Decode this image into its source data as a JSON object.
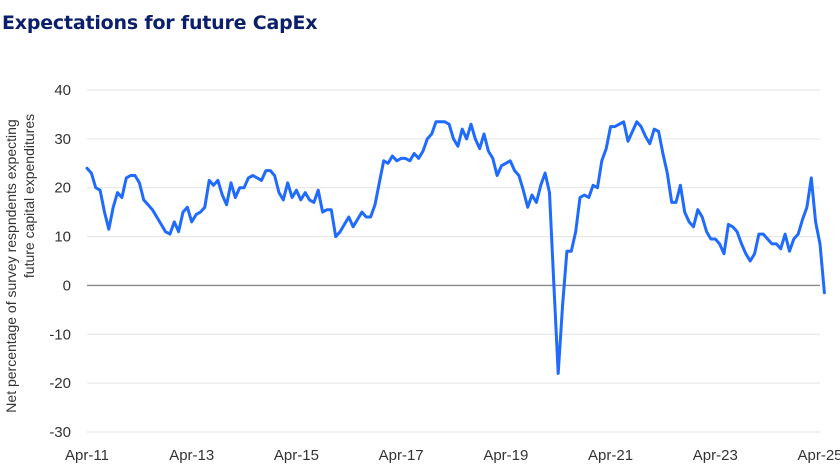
{
  "chart_data": {
    "type": "line",
    "title": "Expectations for future CapEx",
    "ylabel": "Net percentage of survey respndents expecting future capital expenditures",
    "xlabel": "",
    "ylim": [
      -30,
      40
    ],
    "yticks": [
      40,
      30,
      20,
      10,
      0,
      -10,
      -20,
      -30
    ],
    "xtick_labels": [
      "Apr-11",
      "Apr-13",
      "Apr-15",
      "Apr-17",
      "Apr-19",
      "Apr-21",
      "Apr-23",
      "Apr-25"
    ],
    "grid": true,
    "zero_line": true,
    "color": "#1f6bff",
    "series": [
      {
        "name": "",
        "points": [
          [
            "2011-04",
            24
          ],
          [
            "2011-05",
            23
          ],
          [
            "2011-06",
            20
          ],
          [
            "2011-07",
            19.5
          ],
          [
            "2011-08",
            15
          ],
          [
            "2011-09",
            11.5
          ],
          [
            "2011-10",
            16
          ],
          [
            "2011-11",
            19
          ],
          [
            "2011-12",
            18
          ],
          [
            "2012-01",
            22
          ],
          [
            "2012-02",
            22.5
          ],
          [
            "2012-03",
            22.5
          ],
          [
            "2012-04",
            21
          ],
          [
            "2012-05",
            17.5
          ],
          [
            "2012-06",
            16.5
          ],
          [
            "2012-07",
            15.5
          ],
          [
            "2012-08",
            14
          ],
          [
            "2012-09",
            12.5
          ],
          [
            "2012-10",
            11
          ],
          [
            "2012-11",
            10.5
          ],
          [
            "2012-12",
            13
          ],
          [
            "2013-01",
            11
          ],
          [
            "2013-02",
            15
          ],
          [
            "2013-03",
            16
          ],
          [
            "2013-04",
            13
          ],
          [
            "2013-05",
            14.5
          ],
          [
            "2013-06",
            15
          ],
          [
            "2013-07",
            16
          ],
          [
            "2013-08",
            21.5
          ],
          [
            "2013-09",
            20.5
          ],
          [
            "2013-10",
            21.5
          ],
          [
            "2013-11",
            18.5
          ],
          [
            "2013-12",
            16.5
          ],
          [
            "2014-01",
            21
          ],
          [
            "2014-02",
            18
          ],
          [
            "2014-03",
            20
          ],
          [
            "2014-04",
            20
          ],
          [
            "2014-05",
            22
          ],
          [
            "2014-06",
            22.5
          ],
          [
            "2014-07",
            22
          ],
          [
            "2014-08",
            21.5
          ],
          [
            "2014-09",
            23.5
          ],
          [
            "2014-10",
            23.5
          ],
          [
            "2014-11",
            22.5
          ],
          [
            "2014-12",
            19
          ],
          [
            "2015-01",
            17.5
          ],
          [
            "2015-02",
            21
          ],
          [
            "2015-03",
            18
          ],
          [
            "2015-04",
            19.5
          ],
          [
            "2015-05",
            17.5
          ],
          [
            "2015-06",
            19
          ],
          [
            "2015-07",
            17.5
          ],
          [
            "2015-08",
            17
          ],
          [
            "2015-09",
            19.5
          ],
          [
            "2015-10",
            15
          ],
          [
            "2015-11",
            15.5
          ],
          [
            "2015-12",
            15.5
          ],
          [
            "2016-01",
            10
          ],
          [
            "2016-02",
            11
          ],
          [
            "2016-03",
            12.5
          ],
          [
            "2016-04",
            14
          ],
          [
            "2016-05",
            12
          ],
          [
            "2016-06",
            13.5
          ],
          [
            "2016-07",
            15
          ],
          [
            "2016-08",
            14
          ],
          [
            "2016-09",
            14
          ],
          [
            "2016-10",
            16.5
          ],
          [
            "2016-11",
            21
          ],
          [
            "2016-12",
            25.5
          ],
          [
            "2017-01",
            25
          ],
          [
            "2017-02",
            26.5
          ],
          [
            "2017-03",
            25.5
          ],
          [
            "2017-04",
            26
          ],
          [
            "2017-05",
            26
          ],
          [
            "2017-06",
            25.5
          ],
          [
            "2017-07",
            27
          ],
          [
            "2017-08",
            26
          ],
          [
            "2017-09",
            27.5
          ],
          [
            "2017-10",
            30
          ],
          [
            "2017-11",
            31
          ],
          [
            "2017-12",
            33.5
          ],
          [
            "2018-01",
            33.5
          ],
          [
            "2018-02",
            33.5
          ],
          [
            "2018-03",
            33
          ],
          [
            "2018-04",
            30
          ],
          [
            "2018-05",
            28.5
          ],
          [
            "2018-06",
            32
          ],
          [
            "2018-07",
            30
          ],
          [
            "2018-08",
            33
          ],
          [
            "2018-09",
            30
          ],
          [
            "2018-10",
            28
          ],
          [
            "2018-11",
            31
          ],
          [
            "2018-12",
            27.5
          ],
          [
            "2019-01",
            26
          ],
          [
            "2019-02",
            22.5
          ],
          [
            "2019-03",
            24.5
          ],
          [
            "2019-04",
            25
          ],
          [
            "2019-05",
            25.5
          ],
          [
            "2019-06",
            23.5
          ],
          [
            "2019-07",
            22.5
          ],
          [
            "2019-08",
            19.5
          ],
          [
            "2019-09",
            16
          ],
          [
            "2019-10",
            18.5
          ],
          [
            "2019-11",
            17
          ],
          [
            "2019-12",
            20.5
          ],
          [
            "2020-01",
            23
          ],
          [
            "2020-02",
            19
          ],
          [
            "2020-03",
            0
          ],
          [
            "2020-04",
            -18
          ],
          [
            "2020-05",
            -4
          ],
          [
            "2020-06",
            7
          ],
          [
            "2020-07",
            7
          ],
          [
            "2020-08",
            11
          ],
          [
            "2020-09",
            18
          ],
          [
            "2020-10",
            18.5
          ],
          [
            "2020-11",
            18
          ],
          [
            "2020-12",
            20.5
          ],
          [
            "2021-01",
            20
          ],
          [
            "2021-02",
            25.5
          ],
          [
            "2021-03",
            28
          ],
          [
            "2021-04",
            32.5
          ],
          [
            "2021-05",
            32.5
          ],
          [
            "2021-06",
            33
          ],
          [
            "2021-07",
            33.5
          ],
          [
            "2021-08",
            29.5
          ],
          [
            "2021-09",
            31.5
          ],
          [
            "2021-10",
            33.5
          ],
          [
            "2021-11",
            32.5
          ],
          [
            "2021-12",
            30.5
          ],
          [
            "2022-01",
            29
          ],
          [
            "2022-02",
            32
          ],
          [
            "2022-03",
            31.5
          ],
          [
            "2022-04",
            27
          ],
          [
            "2022-05",
            23
          ],
          [
            "2022-06",
            17
          ],
          [
            "2022-07",
            17
          ],
          [
            "2022-08",
            20.5
          ],
          [
            "2022-09",
            15
          ],
          [
            "2022-10",
            13
          ],
          [
            "2022-11",
            12
          ],
          [
            "2022-12",
            15.5
          ],
          [
            "2023-01",
            14
          ],
          [
            "2023-02",
            11
          ],
          [
            "2023-03",
            9.5
          ],
          [
            "2023-04",
            9.5
          ],
          [
            "2023-05",
            8.5
          ],
          [
            "2023-06",
            6.5
          ],
          [
            "2023-07",
            12.5
          ],
          [
            "2023-08",
            12
          ],
          [
            "2023-09",
            11
          ],
          [
            "2023-10",
            8.5
          ],
          [
            "2023-11",
            6.5
          ],
          [
            "2023-12",
            5
          ],
          [
            "2024-01",
            6.5
          ],
          [
            "2024-02",
            10.5
          ],
          [
            "2024-03",
            10.5
          ],
          [
            "2024-04",
            9.5
          ],
          [
            "2024-05",
            8.5
          ],
          [
            "2024-06",
            8.5
          ],
          [
            "2024-07",
            7.5
          ],
          [
            "2024-08",
            10.5
          ],
          [
            "2024-09",
            7
          ],
          [
            "2024-10",
            9.5
          ],
          [
            "2024-11",
            10.5
          ],
          [
            "2024-12",
            13.5
          ],
          [
            "2025-01",
            16
          ],
          [
            "2025-02",
            22
          ],
          [
            "2025-03",
            13
          ],
          [
            "2025-04",
            8.5
          ],
          [
            "2025-05",
            -1.5
          ]
        ]
      }
    ]
  }
}
